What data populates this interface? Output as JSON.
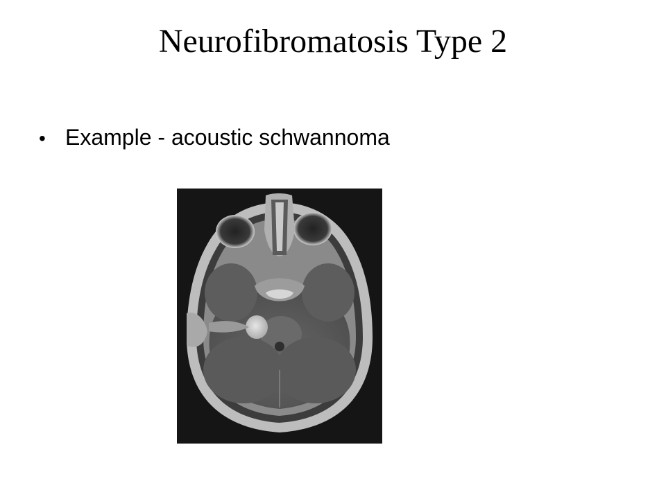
{
  "slide": {
    "title": "Neurofibromatosis Type 2",
    "bullets": [
      {
        "text": "Example - acoustic schwannoma"
      }
    ],
    "bullet_glyph": "•"
  },
  "image": {
    "subject": "axial-brain-mri-icon"
  },
  "colors": {
    "background": "#ffffff",
    "text": "#000000",
    "image_background": "#151515"
  }
}
